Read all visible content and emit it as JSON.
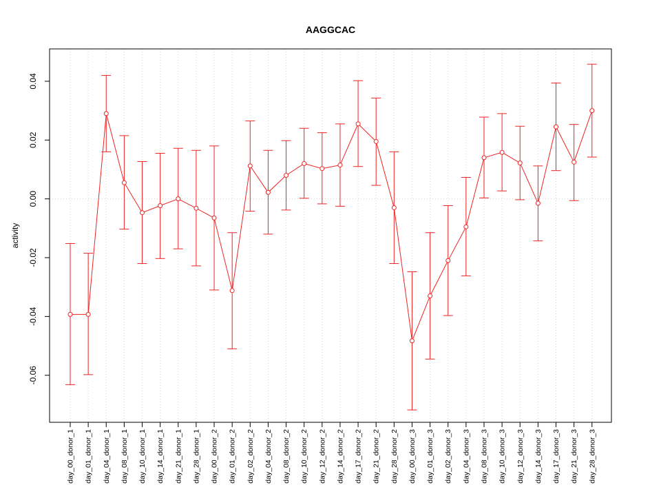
{
  "chart_data": {
    "type": "line",
    "title": "AAGGCAC",
    "xlabel": "",
    "ylabel": "activity",
    "ylim": [
      -0.076,
      0.051
    ],
    "yticks": [
      -0.06,
      -0.04,
      -0.02,
      0.0,
      0.02,
      0.04
    ],
    "ytick_labels": [
      "-0.06",
      "-0.04",
      "-0.02",
      "0.00",
      "0.02",
      "0.04"
    ],
    "grid": true,
    "color": "#ee2222",
    "categories": [
      "day_00_donor_1",
      "day_01_donor_1",
      "day_04_donor_1",
      "day_08_donor_1",
      "day_10_donor_1",
      "day_14_donor_1",
      "day_21_donor_1",
      "day_28_donor_1",
      "day_00_donor_2",
      "day_01_donor_2",
      "day_02_donor_2",
      "day_04_donor_2",
      "day_08_donor_2",
      "day_10_donor_2",
      "day_12_donor_2",
      "day_14_donor_2",
      "day_17_donor_2",
      "day_21_donor_2",
      "day_28_donor_2",
      "day_00_donor_3",
      "day_01_donor_3",
      "day_02_donor_3",
      "day_04_donor_3",
      "day_08_donor_3",
      "day_10_donor_3",
      "day_12_donor_3",
      "day_14_donor_3",
      "day_17_donor_3",
      "day_21_donor_3",
      "day_28_donor_3"
    ],
    "values": [
      -0.0393,
      -0.0393,
      0.029,
      0.0055,
      -0.0047,
      -0.0023,
      0.0,
      -0.0032,
      -0.0065,
      -0.0312,
      0.0112,
      0.0022,
      0.008,
      0.012,
      0.0103,
      0.0115,
      0.0255,
      0.0195,
      -0.003,
      -0.0483,
      -0.033,
      -0.021,
      -0.0095,
      0.014,
      0.0158,
      0.0122,
      -0.0015,
      0.0245,
      0.0125,
      0.03
    ],
    "upper": [
      -0.0152,
      -0.0185,
      0.042,
      0.0215,
      0.0127,
      0.0155,
      0.0172,
      0.0165,
      0.018,
      -0.0115,
      0.0265,
      0.0165,
      0.0198,
      0.024,
      0.0225,
      0.0255,
      0.0402,
      0.0343,
      0.016,
      -0.0248,
      -0.0115,
      -0.0023,
      0.0073,
      0.0278,
      0.029,
      0.0247,
      0.0112,
      0.0394,
      0.0253,
      0.0458
    ],
    "lower": [
      -0.0632,
      -0.0598,
      0.016,
      -0.0103,
      -0.022,
      -0.0203,
      -0.017,
      -0.0228,
      -0.031,
      -0.051,
      -0.0042,
      -0.012,
      -0.0038,
      0.0002,
      -0.0017,
      -0.0025,
      0.011,
      0.0046,
      -0.022,
      -0.0718,
      -0.0545,
      -0.0397,
      -0.0262,
      0.0003,
      0.0027,
      -0.0003,
      -0.0143,
      0.0096,
      -0.0006,
      0.0142
    ]
  }
}
